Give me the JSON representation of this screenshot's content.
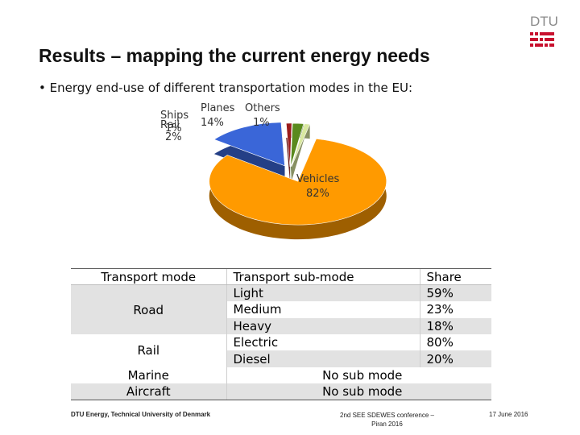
{
  "logo": {
    "text": "DTU"
  },
  "slide": {
    "title": "Results – mapping the current energy needs",
    "bullet": "• Energy end-use of different transportation modes in the EU:"
  },
  "chart_data": {
    "type": "pie",
    "title": "",
    "categories": [
      "Vehicles",
      "Planes",
      "Others",
      "Ships",
      "Rail"
    ],
    "values": [
      82,
      14,
      1,
      2,
      1
    ],
    "labels": {
      "vehicles_name": "Vehicles",
      "vehicles_pct": "82%",
      "planes_name": "Planes",
      "planes_pct": "14%",
      "others_name": "Others",
      "others_pct": "1%",
      "ships_name": "Ships",
      "ships_pct": "2%",
      "rail_name": "Rail",
      "rail_pct": "1%"
    },
    "colors": {
      "vehicles": "#ff9a00",
      "planes": "#3a66d8",
      "others": "#9b1b1b",
      "ships": "#5a8a1e",
      "rail": "#d9e8a0"
    },
    "style": "3d-exploded",
    "legend": "none"
  },
  "table": {
    "headers": {
      "mode": "Transport mode",
      "submode": "Transport sub-mode",
      "share": "Share"
    },
    "road": {
      "label": "Road",
      "rows": [
        {
          "submode": "Light",
          "share": "59%"
        },
        {
          "submode": "Medium",
          "share": "23%"
        },
        {
          "submode": "Heavy",
          "share": "18%"
        }
      ]
    },
    "rail": {
      "label": "Rail",
      "rows": [
        {
          "submode": "Electric",
          "share": "80%"
        },
        {
          "submode": "Diesel",
          "share": "20%"
        }
      ]
    },
    "marine": {
      "label": "Marine",
      "submode": "No sub mode"
    },
    "aircraft": {
      "label": "Aircraft",
      "submode": "No sub mode"
    }
  },
  "footer": {
    "left": "DTU Energy, Technical University of Denmark",
    "mid_line1": "2nd SEE SDEWES conference –",
    "mid_line2": "Piran 2016",
    "right": "17 June 2016"
  }
}
